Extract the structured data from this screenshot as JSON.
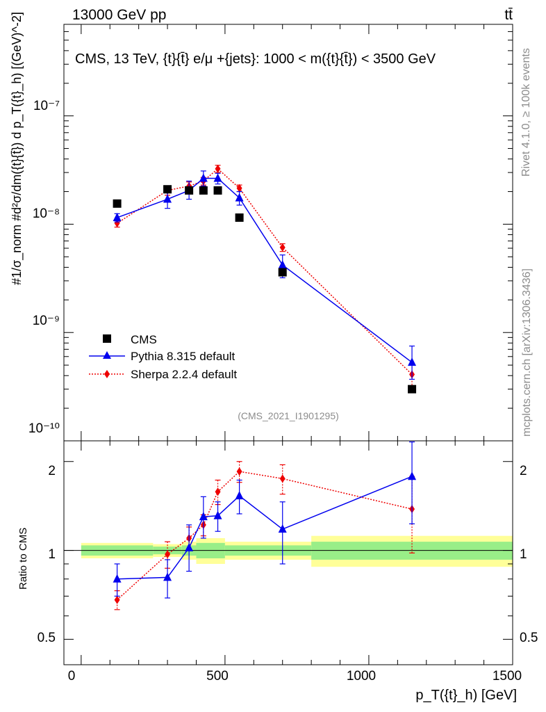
{
  "header": {
    "beam": "13000 GeV pp",
    "process": "tt̄"
  },
  "side_labels": {
    "rivet": "Rivet 4.1.0, ≥ 100k events",
    "mcplots": "mcplots.cern.ch [arXiv:1306.3436]"
  },
  "chart_data": [
    {
      "type": "line",
      "panel": "main",
      "title": "CMS, 13 TeV, {t}{t̄} e/μ +{jets}: 1000 < m({t}{t̄}) < 3500 GeV",
      "watermark": "(CMS_2021_I1901295)",
      "ylabel": "#1/σ_norm #d²σ/dm({t}{t̄}) d p_T({t}_h) [(GeV)^-2]",
      "yscale": "log",
      "xlim": [
        -60,
        1500
      ],
      "ylim": [
        1e-10,
        7e-07
      ],
      "ytick_labels": [
        "10⁻⁷",
        "10⁻⁸",
        "10⁻⁹",
        "10⁻¹⁰"
      ],
      "legend_placement": "lower-left",
      "series": [
        {
          "name": "CMS",
          "color": "#000000",
          "marker": "square",
          "x": [
            125,
            300,
            375,
            425,
            475,
            550,
            700,
            1150
          ],
          "y": [
            1.55e-08,
            2.1e-08,
            2.05e-08,
            2.05e-08,
            2.05e-08,
            1.15e-08,
            3.6e-09,
            3e-10
          ]
        },
        {
          "name": "Pythia 8.315 default",
          "color": "#0000ee",
          "marker": "triangle",
          "line": "solid",
          "x": [
            125,
            300,
            375,
            425,
            475,
            550,
            700,
            1150
          ],
          "y": [
            1.15e-08,
            1.7e-08,
            2.05e-08,
            2.65e-08,
            2.65e-08,
            1.75e-08,
            4.2e-09,
            5.3e-10
          ],
          "err_low": [
            1e-09,
            3e-09,
            3.5e-09,
            4e-09,
            3e-09,
            2.5e-09,
            1e-09,
            1.6e-10
          ],
          "err_high": [
            1e-09,
            3e-09,
            4.5e-09,
            4.5e-09,
            3e-09,
            2.5e-09,
            1e-09,
            2.2e-10
          ]
        },
        {
          "name": "Sherpa 2.2.4 default",
          "color": "#ee0000",
          "marker": "diamond",
          "line": "dotted",
          "x": [
            125,
            300,
            375,
            425,
            475,
            550,
            700,
            1150
          ],
          "y": [
            1.02e-08,
            2.05e-08,
            2.25e-08,
            2.5e-08,
            3.25e-08,
            2.15e-08,
            6.1e-09,
            4.1e-10
          ],
          "err_low": [
            8e-10,
            2e-09,
            2e-09,
            2e-09,
            2.5e-09,
            1.5e-09,
            5e-10,
            1e-10
          ],
          "err_high": [
            8e-10,
            2e-09,
            2e-09,
            2e-09,
            2.5e-09,
            1.5e-09,
            5e-10,
            1e-10
          ]
        }
      ]
    },
    {
      "type": "line",
      "panel": "ratio",
      "ylabel": "Ratio to CMS",
      "xlabel": "p_T({t}_h) [GeV]",
      "yscale": "log",
      "xlim": [
        -60,
        1500
      ],
      "ylim": [
        0.41,
        2.35
      ],
      "ytick_labels": [
        "0.5",
        "1",
        "2"
      ],
      "xtick_labels": [
        "0",
        "500",
        "1000",
        "1500"
      ],
      "band_bins": [
        0,
        250,
        350,
        400,
        500,
        800,
        1500
      ],
      "band_inner": [
        0.96,
        1.04,
        0.97,
        1.03,
        0.96,
        1.04,
        0.94,
        1.06,
        0.96,
        1.04,
        0.93,
        1.07
      ],
      "band_outer": [
        0.94,
        1.06,
        0.95,
        1.05,
        0.93,
        1.07,
        0.9,
        1.1,
        0.93,
        1.07,
        0.88,
        1.12
      ],
      "series": [
        {
          "name": "Pythia 8.315 default",
          "color": "#0000ee",
          "marker": "triangle",
          "line": "solid",
          "x": [
            125,
            300,
            375,
            425,
            475,
            550,
            700,
            1150
          ],
          "y": [
            0.8,
            0.81,
            1.02,
            1.3,
            1.31,
            1.53,
            1.18,
            1.78
          ],
          "err_low": [
            0.1,
            0.12,
            0.17,
            0.2,
            0.15,
            0.2,
            0.28,
            0.55
          ],
          "err_high": [
            0.1,
            0.12,
            0.2,
            0.22,
            0.15,
            0.2,
            0.28,
            0.55
          ]
        },
        {
          "name": "Sherpa 2.2.4 default",
          "color": "#ee0000",
          "marker": "diamond",
          "line": "dotted",
          "x": [
            125,
            300,
            375,
            425,
            475,
            550,
            700,
            1150
          ],
          "y": [
            0.68,
            0.97,
            1.1,
            1.22,
            1.58,
            1.85,
            1.75,
            1.38
          ],
          "err_low": [
            0.05,
            0.1,
            0.1,
            0.1,
            0.15,
            0.15,
            0.2,
            0.4
          ],
          "err_high": [
            0.05,
            0.1,
            0.1,
            0.1,
            0.15,
            0.15,
            0.2,
            0.4
          ]
        }
      ]
    }
  ]
}
